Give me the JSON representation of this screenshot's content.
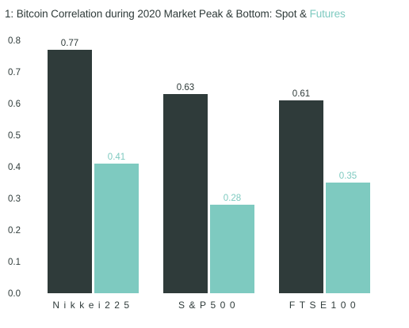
{
  "title": {
    "prefix": "1: Bitcoin Correlation during 2020 Market Peak & Bottom: Spot & ",
    "highlight": "Futures"
  },
  "colors": {
    "spot": "#2f3b3a",
    "futures": "#7ecac0",
    "text": "#2f3b3a"
  },
  "chart_data": {
    "type": "bar",
    "categories": [
      "Nikkei225",
      "S&P500",
      "FTSE100"
    ],
    "series": [
      {
        "name": "Spot",
        "values": [
          0.77,
          0.63,
          0.61
        ]
      },
      {
        "name": "Futures",
        "values": [
          0.41,
          0.28,
          0.35
        ]
      }
    ],
    "data_labels": [
      [
        "0.77",
        "0.63",
        "0.61"
      ],
      [
        "0.41",
        "0.28",
        "0.35"
      ]
    ],
    "yticks": [
      "0.0",
      "0.1",
      "0.2",
      "0.3",
      "0.4",
      "0.5",
      "0.6",
      "0.7",
      "0.8"
    ],
    "ytick_values": [
      0,
      0.1,
      0.2,
      0.3,
      0.4,
      0.5,
      0.6,
      0.7,
      0.8
    ],
    "ylim": [
      0,
      0.8
    ],
    "xlabel": "",
    "ylabel": "",
    "grid": false,
    "legend": "none"
  }
}
